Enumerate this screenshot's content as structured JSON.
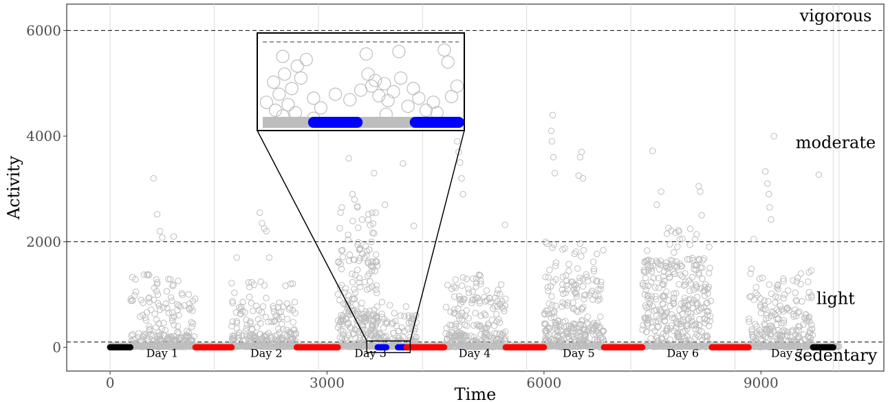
{
  "chart_data": {
    "type": "scatter",
    "xlabel": "Time",
    "ylabel": "Activity",
    "xlim": [
      -600,
      10700
    ],
    "ylim": [
      -450,
      6500
    ],
    "x_ticks": [
      0,
      3000,
      6000,
      9000
    ],
    "y_ticks": [
      0,
      2000,
      4000,
      6000
    ],
    "thresholds": [
      100,
      2000,
      6000
    ],
    "zone_labels": [
      {
        "text": "vigorous",
        "y": 6280
      },
      {
        "text": "moderate",
        "y": 3880
      },
      {
        "text": "light",
        "y": 920
      },
      {
        "text": "sedentary",
        "y": -150
      }
    ],
    "day_boundaries": [
      0,
      1440,
      2880,
      4320,
      5760,
      7200,
      8640,
      10080
    ],
    "day_labels": [
      {
        "text": "Day 1",
        "x": 720
      },
      {
        "text": "Day 2",
        "x": 2160
      },
      {
        "text": "Day 3",
        "x": 3600
      },
      {
        "text": "Day 4",
        "x": 5040
      },
      {
        "text": "Day 5",
        "x": 6480
      },
      {
        "text": "Day 6",
        "x": 7920
      },
      {
        "text": "Day 7",
        "x": 9360
      }
    ],
    "sleep_segments": [
      {
        "color": "#000000",
        "start": 0,
        "end": 280
      },
      {
        "color": "#ff0000",
        "start": 1180,
        "end": 1680
      },
      {
        "color": "#ff0000",
        "start": 2580,
        "end": 3150
      },
      {
        "color": "#0000ff",
        "start": 3700,
        "end": 3820
      },
      {
        "color": "#0000ff",
        "start": 3980,
        "end": 4100
      },
      {
        "color": "#ff0000",
        "start": 4100,
        "end": 4620
      },
      {
        "color": "#ff0000",
        "start": 5470,
        "end": 6000
      },
      {
        "color": "#ff0000",
        "start": 6830,
        "end": 7360
      },
      {
        "color": "#ff0000",
        "start": 8320,
        "end": 8830
      },
      {
        "color": "#000000",
        "start": 9720,
        "end": 10000
      }
    ],
    "activity_bursts": [
      {
        "start": 280,
        "end": 1180,
        "base": 250,
        "peak": 1400,
        "count": 210,
        "spikes": [
          [
            600,
            3200
          ],
          [
            650,
            2520
          ],
          [
            690,
            2200
          ],
          [
            720,
            2080
          ],
          [
            880,
            2100
          ]
        ]
      },
      {
        "start": 1680,
        "end": 2580,
        "base": 250,
        "peak": 1300,
        "count": 200,
        "spikes": [
          [
            2070,
            2550
          ],
          [
            2100,
            2350
          ],
          [
            2130,
            2250
          ],
          [
            2160,
            2200
          ],
          [
            1750,
            1700
          ],
          [
            2200,
            1700
          ]
        ]
      },
      {
        "start": 3150,
        "end": 3700,
        "base": 700,
        "peak": 2700,
        "count": 220,
        "spikes": [
          [
            3300,
            3580
          ],
          [
            3350,
            2900
          ],
          [
            3380,
            2800
          ],
          [
            3420,
            2650
          ]
        ]
      },
      {
        "start": 3700,
        "end": 4250,
        "base": 200,
        "peak": 900,
        "count": 90,
        "spikes": [
          [
            3650,
            3300
          ],
          [
            3800,
            2700
          ],
          [
            4050,
            3480
          ],
          [
            4200,
            2300
          ]
        ]
      },
      {
        "start": 4620,
        "end": 5470,
        "base": 300,
        "peak": 1400,
        "count": 220,
        "spikes": [
          [
            4800,
            3900
          ],
          [
            4820,
            3700
          ],
          [
            4840,
            3500
          ],
          [
            4860,
            3200
          ],
          [
            4880,
            2900
          ],
          [
            5460,
            2320
          ]
        ]
      },
      {
        "start": 6000,
        "end": 6830,
        "base": 450,
        "peak": 2000,
        "count": 260,
        "spikes": [
          [
            6120,
            4400
          ],
          [
            6100,
            4100
          ],
          [
            6110,
            3900
          ],
          [
            6130,
            3600
          ],
          [
            6150,
            3300
          ],
          [
            6500,
            3600
          ],
          [
            6520,
            3700
          ],
          [
            6480,
            3250
          ],
          [
            6540,
            3200
          ]
        ]
      },
      {
        "start": 7360,
        "end": 8320,
        "base": 800,
        "peak": 2300,
        "count": 320,
        "spikes": [
          [
            7500,
            3720
          ],
          [
            7620,
            2950
          ],
          [
            7560,
            2700
          ],
          [
            8140,
            3050
          ],
          [
            8160,
            2950
          ],
          [
            8180,
            2500
          ]
        ]
      },
      {
        "start": 8830,
        "end": 9720,
        "base": 350,
        "peak": 1500,
        "count": 220,
        "spikes": [
          [
            9060,
            3330
          ],
          [
            9090,
            3100
          ],
          [
            9110,
            2900
          ],
          [
            9120,
            2650
          ],
          [
            9140,
            2420
          ],
          [
            9180,
            4000
          ],
          [
            9800,
            3270
          ],
          [
            8900,
            2050
          ]
        ]
      }
    ],
    "inset": {
      "source_region": {
        "x": [
          3550,
          4150
        ],
        "y": [
          -100,
          120
        ]
      },
      "threshold_y": 100,
      "points": [
        [
          3570,
          25
        ],
        [
          3590,
          50
        ],
        [
          3605,
          35
        ],
        [
          3620,
          60
        ],
        [
          3640,
          42
        ],
        [
          3655,
          70
        ],
        [
          3665,
          55
        ],
        [
          3680,
          78
        ],
        [
          3595,
          15
        ],
        [
          3630,
          22
        ],
        [
          3700,
          30
        ],
        [
          3720,
          18
        ],
        [
          3760,
          35
        ],
        [
          3800,
          28
        ],
        [
          3830,
          40
        ],
        [
          3850,
          60
        ],
        [
          3860,
          45
        ],
        [
          3870,
          52
        ],
        [
          3880,
          33
        ],
        [
          3895,
          48
        ],
        [
          3905,
          27
        ],
        [
          3920,
          38
        ],
        [
          3940,
          55
        ],
        [
          3960,
          20
        ],
        [
          3975,
          42
        ],
        [
          3990,
          30
        ],
        [
          4010,
          15
        ],
        [
          4030,
          25
        ],
        [
          4060,
          90
        ],
        [
          4070,
          75
        ],
        [
          4080,
          32
        ],
        [
          4095,
          45
        ],
        [
          3615,
          8
        ],
        [
          3650,
          12
        ],
        [
          3700,
          5
        ],
        [
          3900,
          10
        ],
        [
          4040,
          12
        ],
        [
          3845,
          85
        ],
        [
          3935,
          88
        ],
        [
          3615,
          82
        ]
      ]
    }
  }
}
